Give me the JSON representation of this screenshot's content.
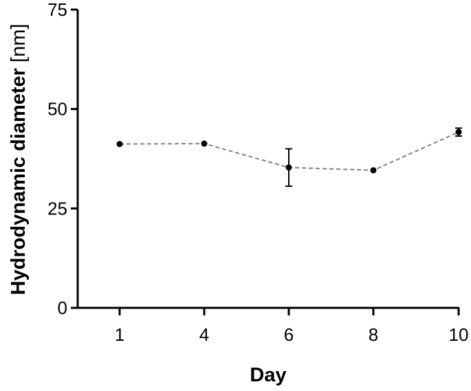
{
  "chart_data": {
    "type": "line",
    "title": "",
    "xlabel": "Day",
    "ylabel": {
      "main": "Hydrodynamic diameter ",
      "unit": "[nm]"
    },
    "x_ticks": [
      "1",
      "4",
      "6",
      "8",
      "10"
    ],
    "y_ticks": [
      "0",
      "25",
      "50",
      "75"
    ],
    "ylim": [
      0,
      75
    ],
    "grid": false,
    "legend": "none",
    "line_style": "dashed",
    "line_color": "#808080",
    "marker_color": "#000000",
    "series": [
      {
        "points": [
          {
            "x": "1",
            "y": 41.2,
            "err": 0
          },
          {
            "x": "4",
            "y": 41.3,
            "err": 0
          },
          {
            "x": "6",
            "y": 35.3,
            "err": 4.7
          },
          {
            "x": "8",
            "y": 34.6,
            "err": 0
          },
          {
            "x": "10",
            "y": 44.2,
            "err": 1.0
          }
        ]
      }
    ]
  }
}
